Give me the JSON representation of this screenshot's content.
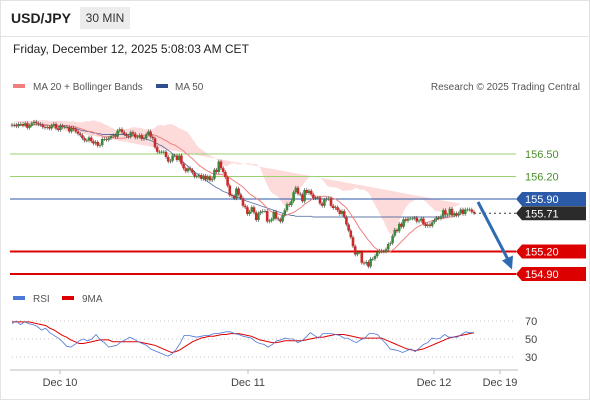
{
  "header": {
    "symbol": "USD/JPY",
    "timeframe": "30 MIN",
    "datetime": "Friday, December 12, 2025 5:08:03 AM CET"
  },
  "legend": {
    "ma20_bb": "MA 20 + Bollinger Bands",
    "ma50": "MA 50",
    "credit": "Research © 2025 Trading Central",
    "rsi": "RSI",
    "rsi_ma": "9MA"
  },
  "colors": {
    "ma20": "#f08080",
    "bollinger_fill": "#fdd5d5",
    "ma50": "#2f4f8f",
    "resistance": "#9ccf6f",
    "pivot": "#2a5aa8",
    "support": "#dd0000",
    "candle_up": "#3a8a3a",
    "candle_down": "#cc2a2a",
    "rsi": "#4c78d8",
    "rsi_ma": "#dd0000",
    "forecast_arrow": "#2d6bb2"
  },
  "price_labels": {
    "r2": "156.50",
    "r1": "156.20",
    "pivot": "155.90",
    "last": "155.71",
    "s1": "155.20",
    "s2": "154.90"
  },
  "rsi_labels": [
    "70",
    "50",
    "30"
  ],
  "x_labels": [
    "Dec 10",
    "Dec 11",
    "Dec 12",
    "Dec 19"
  ],
  "chart_data": [
    {
      "type": "candlestick",
      "title": "USD/JPY",
      "timeframe": "30 MIN",
      "x_axis": [
        "Dec 10",
        "Dec 11",
        "Dec 12",
        "Dec 19"
      ],
      "close": [
        156.88,
        156.89,
        156.87,
        156.9,
        156.9,
        156.88,
        156.91,
        156.85,
        156.88,
        156.91,
        156.93,
        156.91,
        156.9,
        156.89,
        156.86,
        156.85,
        156.86,
        156.84,
        156.88,
        156.9,
        156.84,
        156.82,
        156.88,
        156.86,
        156.86,
        156.86,
        156.8,
        156.85,
        156.83,
        156.8,
        156.77,
        156.75,
        156.71,
        156.68,
        156.68,
        156.72,
        156.67,
        156.64,
        156.66,
        156.61,
        156.62,
        156.7,
        156.7,
        156.69,
        156.71,
        156.74,
        156.75,
        156.73,
        156.81,
        156.83,
        156.79,
        156.76,
        156.74,
        156.73,
        156.79,
        156.77,
        156.72,
        156.73,
        156.75,
        156.7,
        156.71,
        156.76,
        156.8,
        156.73,
        156.71,
        156.59,
        156.53,
        156.53,
        156.53,
        156.53,
        156.46,
        156.4,
        156.41,
        156.48,
        156.48,
        156.42,
        156.48,
        156.37,
        156.31,
        156.27,
        156.31,
        156.29,
        156.25,
        156.2,
        156.2,
        156.22,
        156.17,
        156.21,
        156.16,
        156.2,
        156.15,
        156.17,
        156.29,
        156.26,
        156.4,
        156.31,
        156.26,
        156.19,
        156.08,
        155.95,
        155.94,
        155.91,
        156.04,
        155.96,
        155.91,
        155.81,
        155.79,
        155.7,
        155.73,
        155.79,
        155.72,
        155.62,
        155.71,
        155.73,
        155.74,
        155.74,
        155.6,
        155.61,
        155.63,
        155.73,
        155.64,
        155.63,
        155.6,
        155.68,
        155.75,
        155.83,
        155.82,
        155.87,
        155.99,
        156.05,
        155.97,
        155.96,
        155.87,
        156.02,
        155.98,
        156.01,
        155.96,
        155.91,
        155.92,
        155.92,
        155.84,
        155.81,
        155.89,
        155.9,
        155.91,
        155.81,
        155.78,
        155.79,
        155.75,
        155.7,
        155.74,
        155.66,
        155.56,
        155.48,
        155.39,
        155.27,
        155.16,
        155.19,
        155.19,
        155.05,
        155.04,
        155.06,
        155.0,
        155.1,
        155.1,
        155.14,
        155.19,
        155.21,
        155.2,
        155.2,
        155.23,
        155.3,
        155.31,
        155.41,
        155.49,
        155.47,
        155.57,
        155.53,
        155.63,
        155.61,
        155.64,
        155.64,
        155.64,
        155.65,
        155.6,
        155.61,
        155.64,
        155.57,
        155.54,
        155.56,
        155.54,
        155.59,
        155.62,
        155.65,
        155.64,
        155.67,
        155.75,
        155.69,
        155.69,
        155.77,
        155.68,
        155.71,
        155.68,
        155.71,
        155.76,
        155.7,
        155.76,
        155.76,
        155.76,
        155.73,
        155.71
      ],
      "ma20": [
        156.88,
        156.88,
        156.88,
        156.88,
        156.88,
        156.88,
        156.88,
        156.88,
        156.88,
        156.88,
        156.89,
        156.89,
        156.89,
        156.89,
        156.89,
        156.89,
        156.89,
        156.88,
        156.88,
        156.88,
        156.88,
        156.88,
        156.88,
        156.88,
        156.88,
        156.88,
        156.87,
        156.87,
        156.87,
        156.86,
        156.85,
        156.84,
        156.83,
        156.82,
        156.81,
        156.8,
        156.8,
        156.79,
        156.78,
        156.76,
        156.75,
        156.74,
        156.73,
        156.73,
        156.73,
        156.72,
        156.72,
        156.71,
        156.71,
        156.71,
        156.71,
        156.71,
        156.72,
        156.72,
        156.73,
        156.74,
        156.74,
        156.74,
        156.74,
        156.75,
        156.75,
        156.76,
        156.76,
        156.76,
        156.76,
        156.75,
        156.74,
        156.72,
        156.71,
        156.69,
        156.68,
        156.66,
        156.64,
        156.63,
        156.62,
        156.6,
        156.58,
        156.56,
        156.54,
        156.51,
        156.49,
        156.46,
        156.44,
        156.41,
        156.38,
        156.35,
        156.33,
        156.31,
        156.29,
        156.27,
        156.26,
        156.24,
        156.24,
        156.23,
        156.23,
        156.23,
        156.22,
        156.21,
        156.2,
        156.18,
        156.16,
        156.14,
        156.12,
        156.1,
        156.08,
        156.06,
        156.03,
        156.0,
        155.97,
        155.95,
        155.93,
        155.91,
        155.89,
        155.87,
        155.84,
        155.81,
        155.78,
        155.75,
        155.73,
        155.72,
        155.71,
        155.7,
        155.69,
        155.68,
        155.68,
        155.69,
        155.7,
        155.71,
        155.72,
        155.74,
        155.76,
        155.78,
        155.8,
        155.83,
        155.85,
        155.87,
        155.89,
        155.9,
        155.92,
        155.93,
        155.93,
        155.93,
        155.94,
        155.93,
        155.93,
        155.92,
        155.91,
        155.9,
        155.88,
        155.86,
        155.83,
        155.81,
        155.78,
        155.74,
        155.7,
        155.65,
        155.61,
        155.56,
        155.51,
        155.47,
        155.43,
        155.39,
        155.35,
        155.32,
        155.28,
        155.25,
        155.23,
        155.21,
        155.2,
        155.19,
        155.19,
        155.19,
        155.2,
        155.22,
        155.24,
        155.27,
        155.3,
        155.33,
        155.36,
        155.39,
        155.42,
        155.45,
        155.47,
        155.5,
        155.52,
        155.54,
        155.55,
        155.57,
        155.58,
        155.59,
        155.6,
        155.61,
        155.62,
        155.63,
        155.64,
        155.64,
        155.64,
        155.65,
        155.65,
        155.66,
        155.66,
        155.67,
        155.68,
        155.69,
        155.7
      ],
      "ma50": [
        156.88,
        156.88,
        156.88,
        156.88,
        156.88,
        156.88,
        156.88,
        156.88,
        156.88,
        156.88,
        156.89,
        156.89,
        156.89,
        156.89,
        156.89,
        156.89,
        156.89,
        156.88,
        156.88,
        156.88,
        156.88,
        156.87,
        156.87,
        156.87,
        156.86,
        156.86,
        156.85,
        156.85,
        156.84,
        156.84,
        156.83,
        156.82,
        156.81,
        156.81,
        156.8,
        156.8,
        156.79,
        156.78,
        156.78,
        156.77,
        156.77,
        156.76,
        156.76,
        156.76,
        156.76,
        156.76,
        156.76,
        156.76,
        156.76,
        156.76,
        156.76,
        156.76,
        156.76,
        156.76,
        156.76,
        156.75,
        156.75,
        156.74,
        156.73,
        156.72,
        156.71,
        156.7,
        156.69,
        156.68,
        156.67,
        156.65,
        156.64,
        156.62,
        156.61,
        156.59,
        156.57,
        156.55,
        156.53,
        156.5,
        156.48,
        156.46,
        156.43,
        156.41,
        156.39,
        156.36,
        156.34,
        156.31,
        156.29,
        156.26,
        156.24,
        156.22,
        156.19,
        156.17,
        156.15,
        156.13,
        156.11,
        156.09,
        156.07,
        156.05,
        156.04,
        156.02,
        156.0,
        155.99,
        155.98,
        155.96,
        155.95,
        155.94,
        155.93,
        155.92,
        155.91,
        155.89,
        155.88,
        155.87,
        155.86,
        155.85,
        155.84,
        155.83,
        155.82,
        155.81,
        155.8,
        155.79,
        155.78,
        155.77,
        155.76,
        155.75,
        155.74,
        155.73,
        155.72,
        155.71,
        155.7,
        155.69,
        155.69,
        155.68,
        155.68,
        155.67,
        155.67,
        155.67,
        155.67,
        155.67,
        155.67,
        155.67,
        155.67,
        155.66,
        155.66,
        155.66,
        155.66,
        155.66,
        155.66,
        155.66,
        155.66,
        155.66,
        155.66,
        155.66,
        155.66,
        155.66,
        155.66,
        155.66,
        155.66,
        155.66,
        155.66,
        155.66,
        155.66,
        155.66,
        155.66,
        155.66,
        155.66,
        155.66,
        155.66,
        155.66,
        155.66,
        155.66,
        155.66,
        155.66,
        155.66,
        155.66,
        155.66,
        155.66,
        155.66,
        155.66,
        155.66,
        155.66,
        155.66,
        155.66,
        155.66,
        155.66,
        155.66,
        155.66,
        155.66,
        155.66,
        155.66,
        155.66,
        155.66,
        155.66,
        155.66,
        155.66,
        155.66,
        155.66,
        155.66,
        155.66,
        155.66,
        155.66,
        155.66,
        155.66,
        155.66,
        155.66,
        155.66
      ],
      "levels": {
        "156.50": "resistance",
        "156.20": "resistance",
        "155.90": "pivot",
        "155.71": "last",
        "155.20": "support",
        "154.90": "support"
      },
      "forecast": "down towards 154.90"
    },
    {
      "type": "line",
      "title": "RSI",
      "series": [
        {
          "name": "RSI",
          "values": [
            67,
            70,
            66,
            69,
            67,
            66,
            64,
            60,
            62,
            57,
            54,
            51,
            47,
            42,
            41,
            44,
            48,
            50,
            48,
            50,
            55,
            49,
            46,
            41,
            42,
            43,
            47,
            49,
            52,
            50,
            47,
            45,
            43,
            39,
            37,
            35,
            33,
            31,
            33,
            38,
            45,
            54,
            54,
            53,
            52,
            53,
            54,
            54,
            56,
            56,
            57,
            58,
            58,
            56,
            55,
            53,
            52,
            51,
            47,
            45,
            44,
            41,
            44,
            48,
            49,
            51,
            50,
            50,
            46,
            48,
            52,
            57,
            54,
            51,
            56,
            56,
            56,
            55,
            54,
            51,
            51,
            48,
            46,
            49,
            51,
            56,
            56,
            55,
            50,
            45,
            39,
            38,
            37,
            35,
            37,
            39,
            36,
            40,
            44,
            46,
            51,
            50,
            51,
            55,
            52,
            52,
            52,
            55,
            58,
            57,
            57
          ]
        },
        {
          "name": "9MA",
          "values": [
            69,
            69,
            69,
            69,
            69,
            68,
            67,
            66,
            65,
            62,
            60,
            57,
            54,
            52,
            49,
            47,
            45,
            45,
            46,
            47,
            48,
            49,
            49,
            49,
            47,
            47,
            47,
            47,
            47,
            47,
            47,
            46,
            45,
            44,
            43,
            41,
            39,
            37,
            35,
            36,
            38,
            41,
            44,
            47,
            49,
            51,
            52,
            53,
            53,
            54,
            55,
            55,
            56,
            56,
            56,
            55,
            54,
            53,
            51,
            49,
            48,
            47,
            46,
            46,
            47,
            48,
            48,
            48,
            48,
            48,
            49,
            50,
            51,
            52,
            52,
            53,
            54,
            55,
            55,
            55,
            54,
            53,
            52,
            51,
            51,
            51,
            51,
            51,
            51,
            49,
            47,
            45,
            43,
            41,
            39,
            38,
            37,
            38,
            39,
            41,
            43,
            45,
            47,
            49,
            51,
            52,
            53,
            54,
            55,
            56,
            57
          ]
        }
      ],
      "levels": [
        70,
        50,
        30
      ]
    }
  ]
}
